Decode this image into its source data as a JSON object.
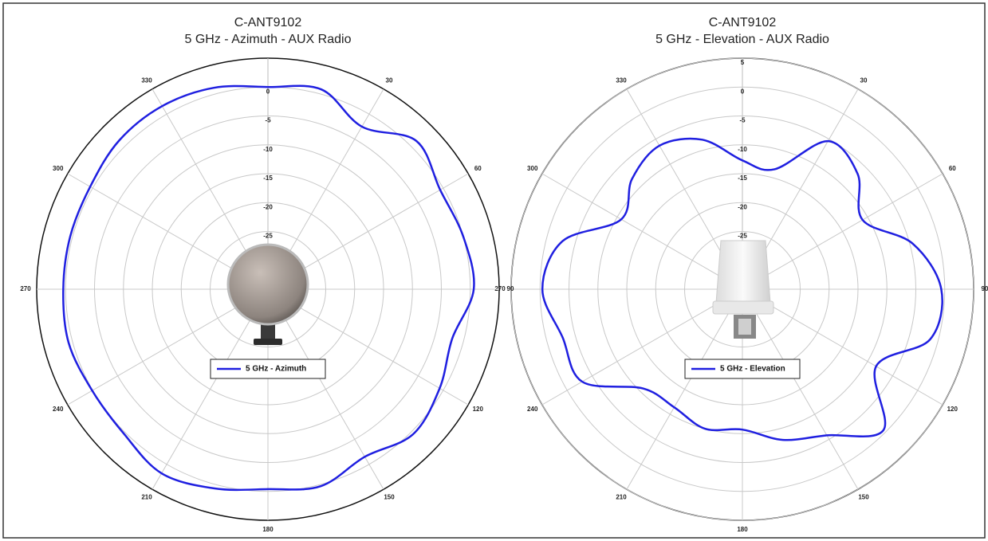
{
  "chart_data": [
    {
      "type": "polar",
      "title": "C-ANT9102",
      "subtitle": "5 GHz - Azimuth - AUX Radio",
      "theta": [
        0,
        15,
        30,
        45,
        60,
        75,
        90,
        105,
        120,
        135,
        150,
        165,
        180,
        195,
        210,
        225,
        240,
        255,
        270,
        285,
        300,
        315,
        330,
        345
      ],
      "series": [
        {
          "name": "5 GHz - Azimuth",
          "color": "#1f1fe0",
          "values": [
            0,
            0.8,
            -2.5,
            1.3,
            -0.6,
            0,
            0.6,
            -2,
            -0.7,
            0.5,
            -1.5,
            0.3,
            -0.4,
            0.7,
            1.8,
            0.3,
            0.1,
            0.7,
            0.4,
            0.4,
            0.5,
            1.4,
            1.6,
            1.1
          ]
        }
      ],
      "rlim": [
        -35,
        5
      ],
      "rticks": [
        -25,
        -20,
        -15,
        -10,
        -5,
        0
      ],
      "thetaticks": [
        30,
        60,
        90,
        120,
        150,
        180,
        210,
        240,
        270,
        300,
        330
      ]
    },
    {
      "type": "polar",
      "title": "C-ANT9102",
      "subtitle": "5 GHz - Elevation - AUX Radio",
      "theta": [
        0,
        15,
        30,
        45,
        60,
        75,
        90,
        105,
        120,
        135,
        150,
        165,
        180,
        195,
        210,
        225,
        240,
        255,
        270,
        285,
        300,
        315,
        330,
        345
      ],
      "series": [
        {
          "name": "5 GHz - Elevation",
          "color": "#1f1fe0",
          "values": [
            -12.7,
            -13.5,
            -5.4,
            -6.8,
            -11,
            -4.5,
            -0.6,
            -1.4,
            -8.3,
            -0.5,
            -5.8,
            -8,
            -10.7,
            -10,
            -11.4,
            -10.7,
            -3,
            -2.8,
            -0.4,
            -2.8,
            -10.8,
            -8,
            -6.3,
            -8.2
          ]
        }
      ],
      "rlim": [
        -35,
        5
      ],
      "rticks": [
        -25,
        -20,
        -15,
        -10,
        -5,
        0,
        5
      ],
      "thetaticks": [
        30,
        60,
        90,
        120,
        150,
        180,
        210,
        240,
        270,
        300,
        330
      ]
    }
  ]
}
